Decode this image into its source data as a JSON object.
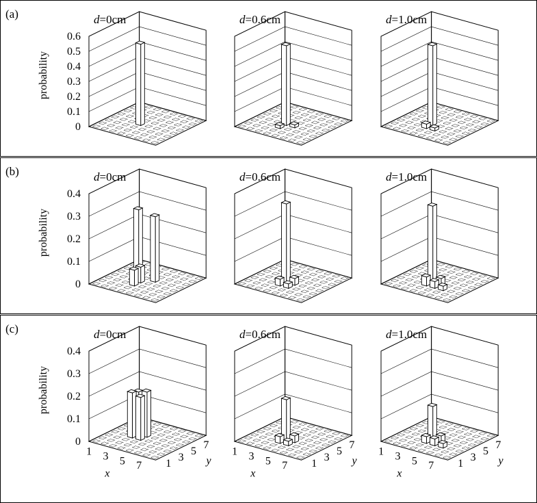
{
  "chart_data": [
    {
      "type": "bar3d",
      "panel": "(a)",
      "ylabel": "probability",
      "zlim": [
        0,
        0.6
      ],
      "zticks": [
        "0",
        "0.1",
        "0.2",
        "0.3",
        "0.4",
        "0.5",
        "0.6"
      ],
      "subplots": [
        {
          "title_var": "d",
          "title_value": "=0cm",
          "bars": [
            {
              "x": 4,
              "y": 4,
              "value": 0.54
            }
          ]
        },
        {
          "title_var": "d",
          "title_value": "=0.6cm",
          "bars": [
            {
              "x": 4,
              "y": 4,
              "value": 0.53
            },
            {
              "x": 4,
              "y": 3,
              "value": 0.02
            },
            {
              "x": 5,
              "y": 4,
              "value": 0.02
            }
          ]
        },
        {
          "title_var": "d",
          "title_value": "=1.0cm",
          "bars": [
            {
              "x": 4,
              "y": 4,
              "value": 0.53
            },
            {
              "x": 4,
              "y": 3,
              "value": 0.03
            },
            {
              "x": 5,
              "y": 3,
              "value": 0.02
            }
          ]
        }
      ]
    },
    {
      "type": "bar3d",
      "panel": "(b)",
      "ylabel": "probability",
      "zlim": [
        0,
        0.4
      ],
      "zticks": [
        "0",
        "0.1",
        "0.2",
        "0.3",
        "0.4"
      ],
      "subplots": [
        {
          "title_var": "d",
          "title_value": "=0cm",
          "bars": [
            {
              "x": 3,
              "y": 5,
              "value": 0.3
            },
            {
              "x": 5,
              "y": 5,
              "value": 0.29
            },
            {
              "x": 4,
              "y": 4,
              "value": 0.07
            },
            {
              "x": 4,
              "y": 3,
              "value": 0.07
            }
          ]
        },
        {
          "title_var": "d",
          "title_value": "=0.6cm",
          "bars": [
            {
              "x": 4,
              "y": 4,
              "value": 0.35
            },
            {
              "x": 4,
              "y": 3,
              "value": 0.03
            },
            {
              "x": 5,
              "y": 4,
              "value": 0.03
            },
            {
              "x": 5,
              "y": 3,
              "value": 0.02
            }
          ]
        },
        {
          "title_var": "d",
          "title_value": "=1.0cm",
          "bars": [
            {
              "x": 4,
              "y": 4,
              "value": 0.34
            },
            {
              "x": 4,
              "y": 3,
              "value": 0.04
            },
            {
              "x": 5,
              "y": 4,
              "value": 0.03
            },
            {
              "x": 5,
              "y": 3,
              "value": 0.03
            },
            {
              "x": 6,
              "y": 3,
              "value": 0.02
            }
          ]
        }
      ]
    },
    {
      "type": "bar3d",
      "panel": "(c)",
      "ylabel": "probability",
      "zlim": [
        0,
        0.4
      ],
      "zticks": [
        "0",
        "0.1",
        "0.2",
        "0.3",
        "0.4"
      ],
      "xlabel": "x",
      "ylabel_depth": "y",
      "xticks": [
        "1",
        "3",
        "5",
        "7"
      ],
      "yticks": [
        "1",
        "3",
        "5",
        "7"
      ],
      "subplots": [
        {
          "title_var": "d",
          "title_value": "=0cm",
          "bars": [
            {
              "x": 3,
              "y": 5,
              "value": 0.19
            },
            {
              "x": 3,
              "y": 4,
              "value": 0.2
            },
            {
              "x": 4,
              "y": 5,
              "value": 0.2
            },
            {
              "x": 4,
              "y": 4,
              "value": 0.19
            }
          ]
        },
        {
          "title_var": "d",
          "title_value": "=0.6cm",
          "bars": [
            {
              "x": 4,
              "y": 4,
              "value": 0.18
            },
            {
              "x": 4,
              "y": 3,
              "value": 0.03
            },
            {
              "x": 5,
              "y": 4,
              "value": 0.03
            },
            {
              "x": 5,
              "y": 3,
              "value": 0.02
            }
          ]
        },
        {
          "title_var": "d",
          "title_value": "=1.0cm",
          "bars": [
            {
              "x": 4,
              "y": 4,
              "value": 0.15
            },
            {
              "x": 4,
              "y": 3,
              "value": 0.03
            },
            {
              "x": 5,
              "y": 4,
              "value": 0.03
            },
            {
              "x": 5,
              "y": 3,
              "value": 0.03
            },
            {
              "x": 6,
              "y": 3,
              "value": 0.02
            }
          ]
        }
      ]
    }
  ]
}
